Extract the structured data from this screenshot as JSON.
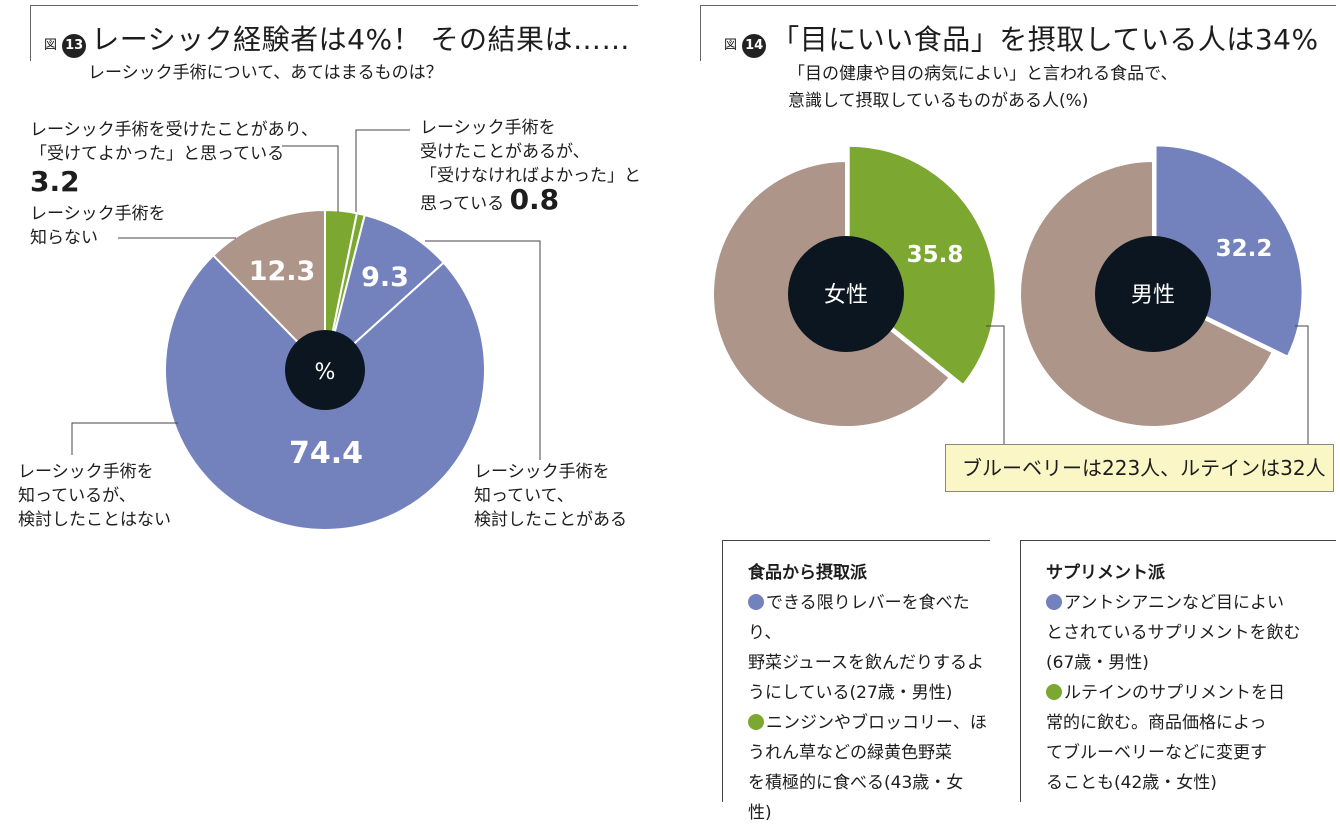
{
  "colors": {
    "blue": "#7382bd",
    "green": "#7ca832",
    "taupe": "#ad958a",
    "center": "#0c1620",
    "callout_bg": "#fbf6c5"
  },
  "fig13": {
    "fig_word": "図",
    "fig_num": "13",
    "title": "レーシック経験者は4%！ その結果は……",
    "subtitle": "レーシック手術について、あてはまるものは？",
    "center_label": "%",
    "labels": {
      "good_line1": "レーシック手術を受けたことがあり、",
      "good_line2": "「受けてよかった」と思っている",
      "good_value": "3.2",
      "regret_line1": "レーシック手術を",
      "regret_line2": "受けたことがあるが、",
      "regret_line3": "「受けなければよかった」と",
      "regret_line4": "思っている",
      "regret_value": "0.8",
      "unknown_line1": "レーシック手術を",
      "unknown_line2": "知らない",
      "noconsider_line1": "レーシック手術を",
      "noconsider_line2": "知っているが、",
      "noconsider_line3": "検討したことはない",
      "considered_line1": "レーシック手術を",
      "considered_line2": "知っていて、",
      "considered_line3": "検討したことがある"
    }
  },
  "fig14": {
    "fig_word": "図",
    "fig_num": "14",
    "title": "「目にいい食品」を摂取している人は34%",
    "subtitle_line1": "「目の健康や目の病気によい」と言われる食品で、",
    "subtitle_line2": "意識して摂取しているものがある人(%)",
    "callout": "ブルーベリーは223人、ルテインは32人"
  },
  "chart_data": [
    {
      "type": "pie",
      "categories": [
        "レーシック手術を受けたことがあり、「受けてよかった」と思っている",
        "レーシック手術を受けたことがあるが、「受けなければよかった」と思っている",
        "レーシック手術を知っていて、検討したことがある",
        "レーシック手術を知っているが、検討したことはない",
        "レーシック手術を知らない"
      ],
      "values": [
        3.2,
        0.8,
        9.3,
        74.4,
        12.3
      ],
      "value_labels": [
        "3.2",
        "0.8",
        "9.3",
        "74.4",
        "12.3"
      ],
      "colors": [
        "#7ca832",
        "#7ca832",
        "#7382bd",
        "#7382bd",
        "#ad958a"
      ],
      "title": "レーシック経験者は4%！ その結果は……"
    },
    {
      "type": "pie",
      "categories": [
        "女性"
      ],
      "values": [
        35.8
      ],
      "value_labels": [
        "35.8"
      ],
      "colors": [
        "#7ca832"
      ],
      "center_label": "女性",
      "exploded": true
    },
    {
      "type": "pie",
      "categories": [
        "男性"
      ],
      "values": [
        32.2
      ],
      "value_labels": [
        "32.2"
      ],
      "colors": [
        "#7382bd"
      ],
      "center_label": "男性",
      "exploded": true
    }
  ],
  "food_box": {
    "heading": "食品から摂取派",
    "item1_lines": [
      "できる限りレバーを食べたり、",
      "野菜ジュースを飲んだりするよ",
      "うにしている(27歳・男性)"
    ],
    "item2_lines": [
      "ニンジンやブロッコリー、ほ",
      "うれん草などの緑黄色野菜",
      "を積極的に食べる(43歳・女",
      "性)"
    ]
  },
  "supp_box": {
    "heading": "サプリメント派",
    "item1_lines": [
      "アントシアニンなど目によい",
      "とされているサプリメントを飲む",
      "(67歳・男性)"
    ],
    "item2_lines": [
      "ルテインのサプリメントを日",
      "常的に飲む。商品価格によっ",
      "てブルーベリーなどに変更す",
      "ることも(42歳・女性)"
    ]
  }
}
